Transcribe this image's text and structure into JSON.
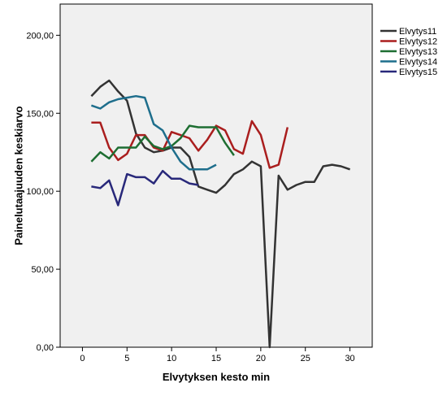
{
  "chart_data": {
    "type": "line",
    "xlabel": "Elvytyksen kesto min",
    "ylabel": "Painelutaajuuden keskiarvo",
    "xlim": [
      -2.5,
      32.5
    ],
    "ylim": [
      0,
      220
    ],
    "x_ticks": [
      0,
      5,
      10,
      15,
      20,
      25,
      30
    ],
    "y_ticks": [
      0,
      50,
      100,
      150,
      200
    ],
    "x_tick_labels": [
      "0",
      "5",
      "10",
      "15",
      "20",
      "25",
      "30"
    ],
    "y_tick_labels": [
      "0,00",
      "50,00",
      "100,00",
      "150,00",
      "200,00"
    ],
    "grid": false,
    "legend_position": "right",
    "plot_background": "#f0f0f0",
    "series": [
      {
        "name": "Elvytys11",
        "color": "#333333",
        "x": [
          1,
          2,
          3,
          4,
          5,
          6,
          7,
          8,
          9,
          10,
          11,
          12,
          13,
          14,
          15,
          16,
          17,
          18,
          19,
          20,
          21,
          22,
          23,
          24,
          25,
          26,
          27,
          28,
          29,
          30
        ],
        "y": [
          161,
          167,
          171,
          164,
          158,
          137,
          128,
          125,
          126,
          128,
          128,
          122,
          103,
          101,
          99,
          104,
          111,
          114,
          119,
          116,
          0,
          110,
          101,
          104,
          106,
          106,
          116,
          117,
          116,
          114
        ]
      },
      {
        "name": "Elvytys12",
        "color": "#aa1e1e",
        "x": [
          1,
          2,
          3,
          4,
          5,
          6,
          7,
          8,
          9,
          10,
          11,
          12,
          13,
          14,
          15,
          16,
          17,
          18,
          19,
          20,
          21,
          22,
          23
        ],
        "y": [
          144,
          144,
          128,
          120,
          124,
          136,
          136,
          128,
          126,
          138,
          136,
          134,
          126,
          133,
          142,
          139,
          127,
          124,
          145,
          136,
          115,
          117,
          141
        ]
      },
      {
        "name": "Elvytys13",
        "color": "#1e6e32",
        "x": [
          1,
          2,
          3,
          4,
          5,
          6,
          7,
          8,
          9,
          10,
          11,
          12,
          13,
          14,
          15,
          16,
          17
        ],
        "y": [
          119,
          125,
          121,
          128,
          128,
          128,
          135,
          129,
          127,
          129,
          134,
          142,
          141,
          141,
          141,
          131,
          123
        ]
      },
      {
        "name": "Elvytys14",
        "color": "#1e6e8c",
        "x": [
          1,
          2,
          3,
          4,
          5,
          6,
          7,
          8,
          9,
          10,
          11,
          12,
          13,
          14,
          15
        ],
        "y": [
          155,
          153,
          157,
          159,
          160,
          161,
          160,
          143,
          139,
          128,
          119,
          114,
          114,
          114,
          117
        ]
      },
      {
        "name": "Elvytys15",
        "color": "#28287a",
        "x": [
          1,
          2,
          3,
          4,
          5,
          6,
          7,
          8,
          9,
          10,
          11,
          12,
          13
        ],
        "y": [
          103,
          102,
          107,
          91,
          111,
          109,
          109,
          105,
          113,
          108,
          108,
          105,
          104
        ]
      }
    ]
  }
}
